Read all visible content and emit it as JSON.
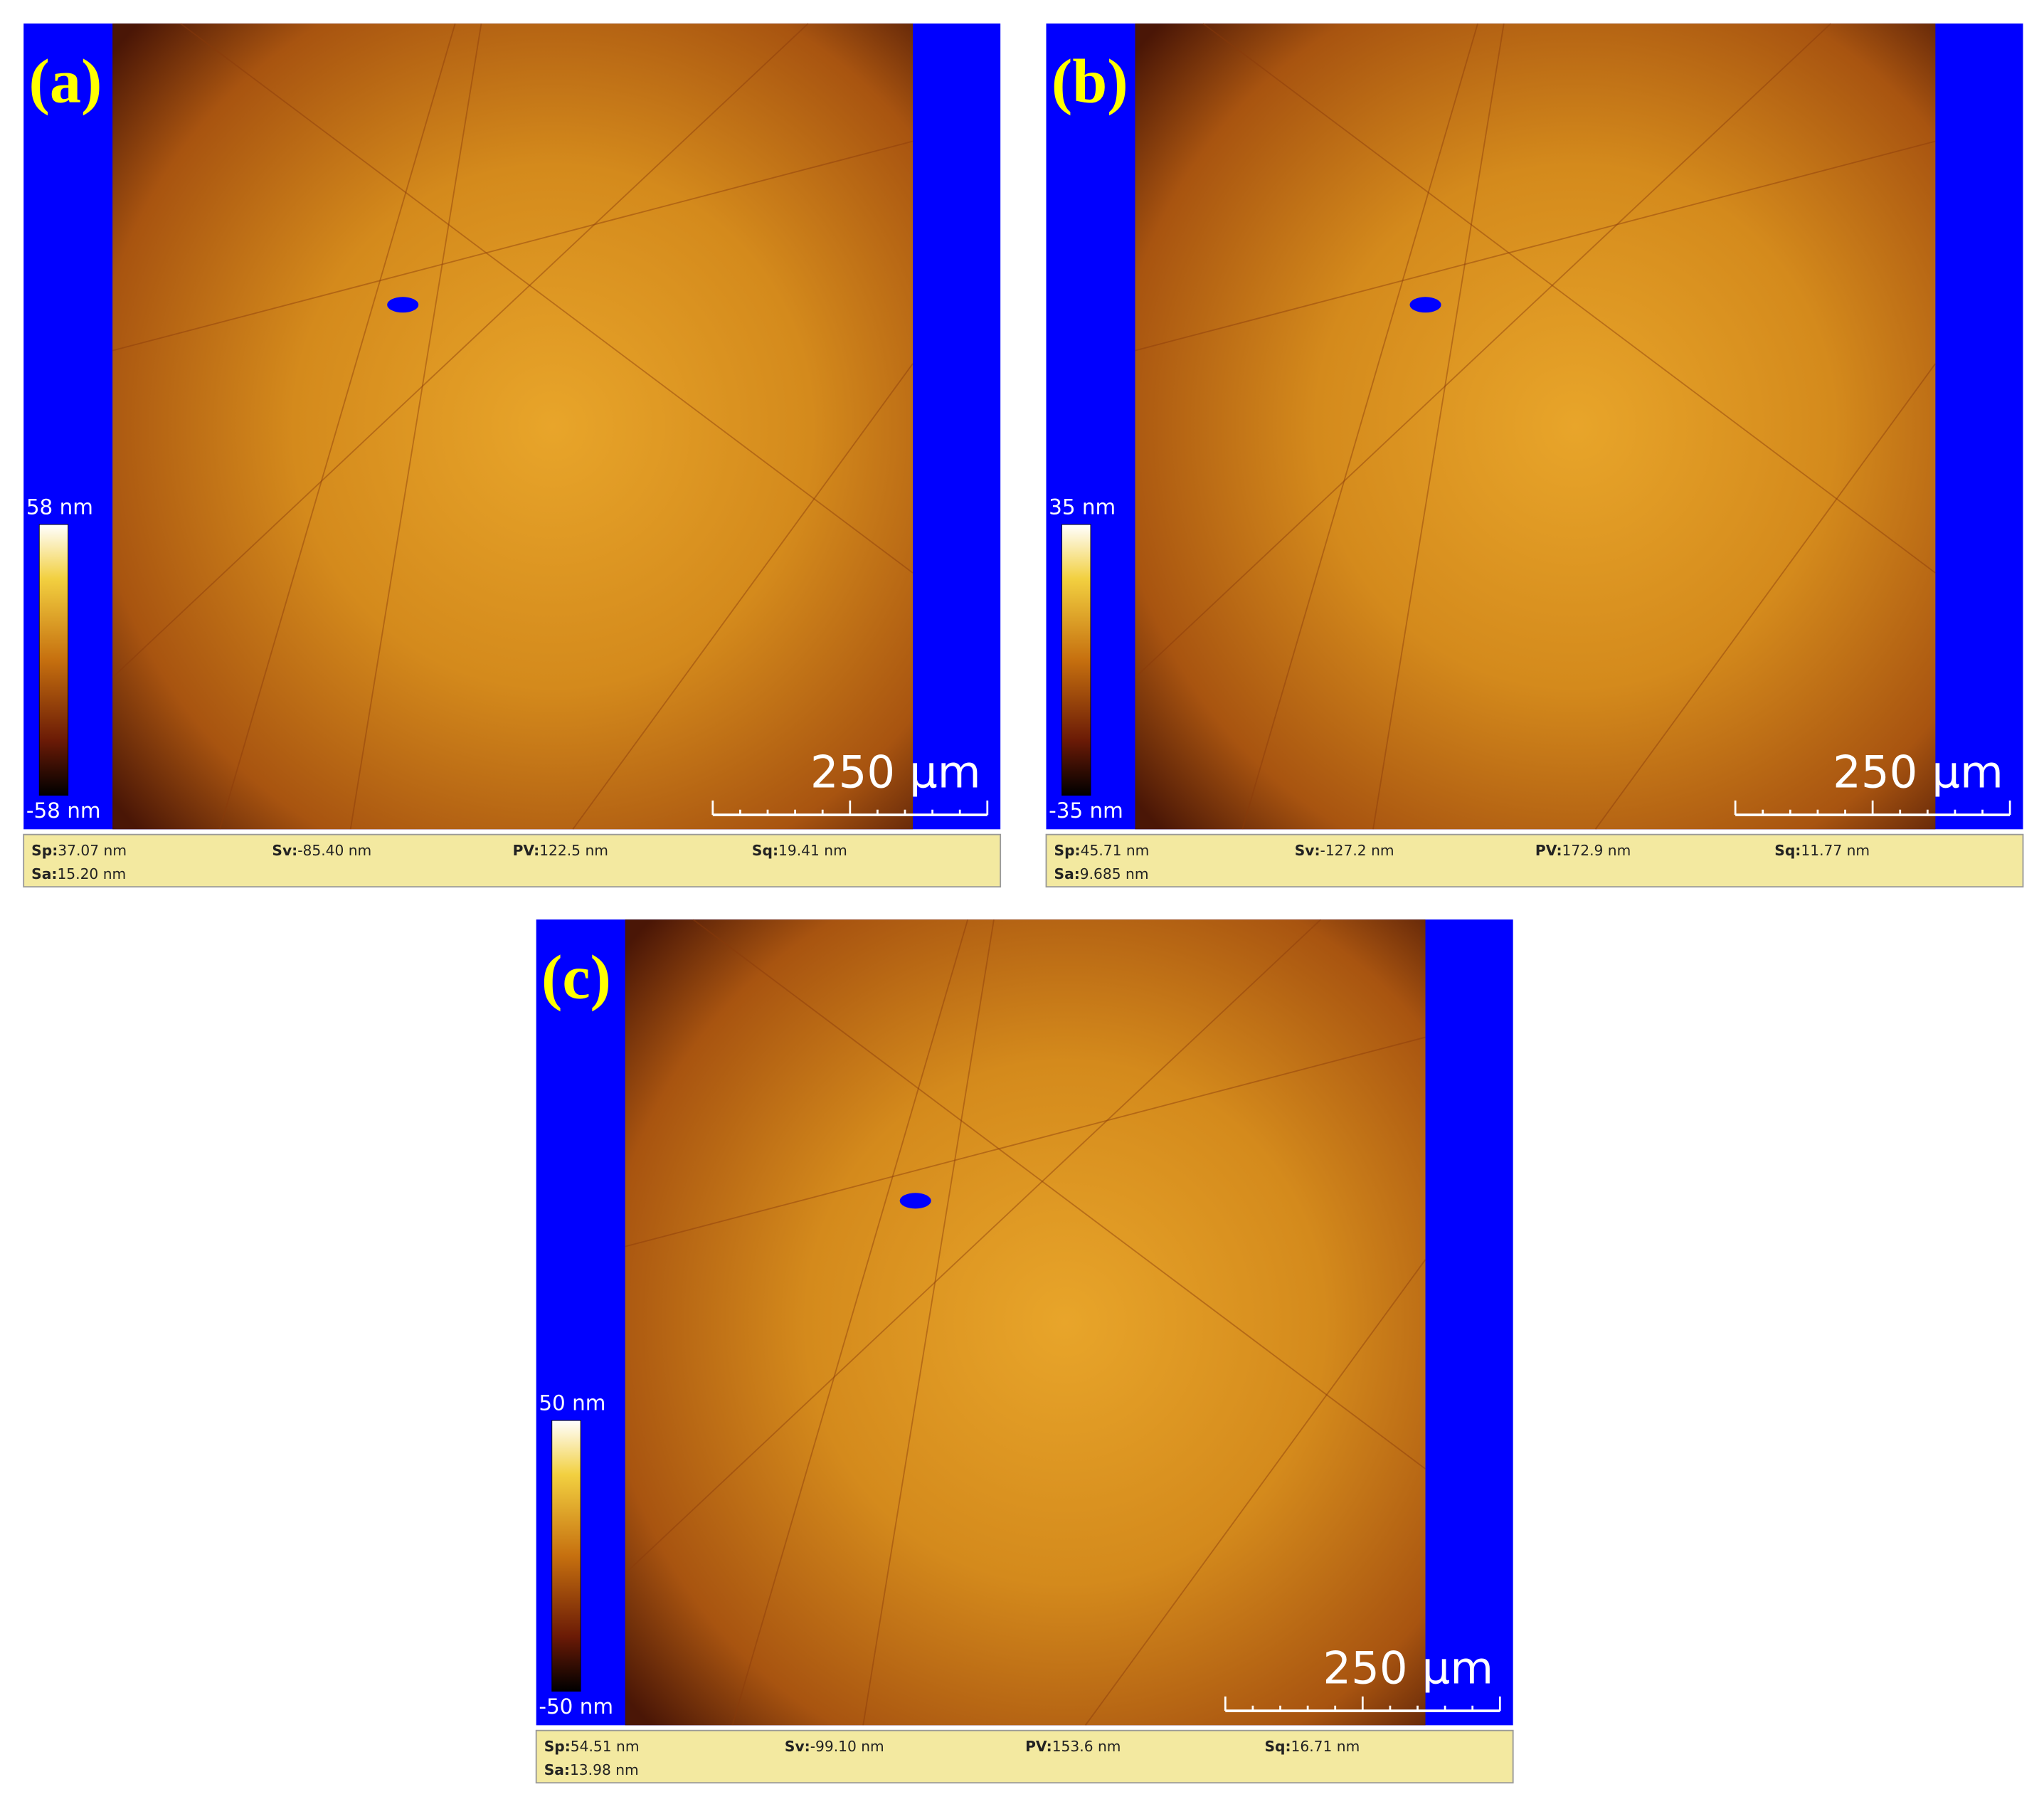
{
  "panels": [
    {
      "label": "(a)",
      "scale_max": "58 nm",
      "scale_min": "-58 nm",
      "scale_bar": "250 µm",
      "stats": [
        {
          "name": "Sp:",
          "value": "37.07 nm"
        },
        {
          "name": "Sv:",
          "value": "-85.40 nm"
        },
        {
          "name": "PV:",
          "value": "122.5 nm"
        },
        {
          "name": "Sq:",
          "value": "19.41 nm"
        },
        {
          "name": "Sa:",
          "value": "15.20 nm"
        }
      ]
    },
    {
      "label": "(b)",
      "scale_max": "35 nm",
      "scale_min": "-35 nm",
      "scale_bar": "250 µm",
      "stats": [
        {
          "name": "Sp:",
          "value": "45.71 nm"
        },
        {
          "name": "Sv:",
          "value": "-127.2 nm"
        },
        {
          "name": "PV:",
          "value": "172.9 nm"
        },
        {
          "name": "Sq:",
          "value": "11.77 nm"
        },
        {
          "name": "Sa:",
          "value": "9.685 nm"
        }
      ]
    },
    {
      "label": "(c)",
      "scale_max": "50 nm",
      "scale_min": "-50 nm",
      "scale_bar": "250 µm",
      "stats": [
        {
          "name": "Sp:",
          "value": "54.51 nm"
        },
        {
          "name": "Sv:",
          "value": "-99.10 nm"
        },
        {
          "name": "PV:",
          "value": "153.6 nm"
        },
        {
          "name": "Sq:",
          "value": "16.71 nm"
        },
        {
          "name": "Sa:",
          "value": "13.98 nm"
        }
      ]
    }
  ]
}
